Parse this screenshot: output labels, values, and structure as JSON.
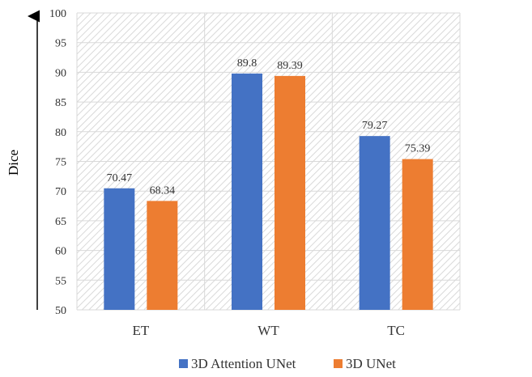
{
  "chart_data": {
    "type": "bar",
    "categories": [
      "ET",
      "WT",
      "TC"
    ],
    "series": [
      {
        "name": "3D Attention UNet",
        "color": "#4472c4",
        "values": [
          70.47,
          89.8,
          79.27
        ]
      },
      {
        "name": "3D UNet",
        "color": "#ed7d31",
        "values": [
          68.34,
          89.39,
          75.39
        ]
      }
    ],
    "value_labels": [
      [
        "70.47",
        "89.8",
        "79.27"
      ],
      [
        "68.34",
        "89.39",
        "75.39"
      ]
    ],
    "ylabel": "Dice",
    "ylim": [
      50,
      100
    ],
    "yticks": [
      50,
      55,
      60,
      65,
      70,
      75,
      80,
      85,
      90,
      95,
      100
    ],
    "grid": true,
    "legend_position": "bottom"
  }
}
